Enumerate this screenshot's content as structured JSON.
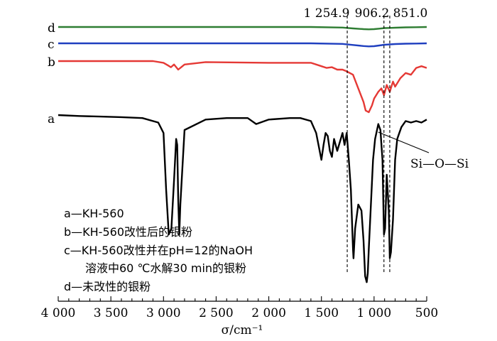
{
  "chart_data": {
    "type": "line",
    "xlabel": "σ/cm⁻¹",
    "xlim": [
      4000,
      500
    ],
    "x_ticks": [
      "4 000",
      "3 500",
      "3 000",
      "2 500",
      "2 000",
      "1 500",
      "1 000",
      "500"
    ],
    "x_tick_values": [
      4000,
      3500,
      3000,
      2500,
      2000,
      1500,
      1000,
      500
    ],
    "peak_markers": [
      {
        "label": "1 254.9",
        "x": 1254.9
      },
      {
        "label": "906.2",
        "x": 906.2
      },
      {
        "label": "851.0",
        "x": 851.0
      }
    ],
    "annotation": {
      "label": "Si—O—Si",
      "x": 960
    },
    "series": [
      {
        "name": "d",
        "color": "#2e7d32",
        "x": [
          4000,
          3500,
          3000,
          2500,
          2000,
          1600,
          1300,
          1200,
          1100,
          1050,
          1000,
          950,
          900,
          850,
          800,
          700,
          600,
          500
        ],
        "y": [
          0,
          0,
          0,
          0,
          0,
          0,
          0.3,
          0.8,
          1.2,
          1.3,
          1.2,
          0.9,
          0.6,
          0.5,
          0.4,
          0.2,
          0.1,
          0
        ]
      },
      {
        "name": "c",
        "color": "#1f3fbf",
        "x": [
          4000,
          3500,
          3000,
          2500,
          2000,
          1600,
          1300,
          1200,
          1100,
          1050,
          1000,
          950,
          900,
          850,
          800,
          700,
          600,
          500
        ],
        "y": [
          0,
          0,
          0,
          0,
          0,
          0,
          0.3,
          0.9,
          1.5,
          1.7,
          1.6,
          1.2,
          0.8,
          0.6,
          0.4,
          0.2,
          0.1,
          0
        ]
      },
      {
        "name": "b",
        "color": "#e53935",
        "x": [
          4000,
          3500,
          3100,
          3000,
          2960,
          2930,
          2900,
          2860,
          2800,
          2600,
          2000,
          1600,
          1500,
          1450,
          1400,
          1350,
          1300,
          1260,
          1200,
          1150,
          1100,
          1080,
          1050,
          1020,
          1000,
          960,
          930,
          906,
          880,
          851,
          820,
          800,
          750,
          700,
          650,
          600,
          550,
          500
        ],
        "y": [
          0,
          0,
          0,
          0.5,
          1.2,
          1.8,
          1.0,
          2.5,
          1.0,
          0.3,
          0.5,
          0.5,
          1.5,
          2.0,
          1.8,
          2.5,
          2.5,
          3.0,
          4.0,
          8.0,
          12.0,
          14.5,
          15.0,
          13.0,
          11.0,
          9.0,
          8.0,
          10.0,
          7.0,
          9.0,
          6.0,
          7.5,
          5.0,
          3.5,
          4.0,
          2.0,
          1.5,
          2.0
        ]
      },
      {
        "name": "a",
        "color": "#000000",
        "x": [
          4000,
          3800,
          3600,
          3400,
          3200,
          3050,
          3000,
          2975,
          2950,
          2925,
          2900,
          2880,
          2870,
          2860,
          2850,
          2840,
          2800,
          2600,
          2400,
          2200,
          2120,
          2000,
          1800,
          1700,
          1600,
          1550,
          1500,
          1480,
          1460,
          1440,
          1420,
          1400,
          1380,
          1350,
          1300,
          1280,
          1260,
          1240,
          1220,
          1200,
          1195,
          1180,
          1150,
          1120,
          1100,
          1085,
          1070,
          1060,
          1050,
          1030,
          1010,
          990,
          960,
          940,
          920,
          906,
          895,
          880,
          860,
          851,
          840,
          820,
          800,
          780,
          760,
          740,
          700,
          650,
          600,
          550,
          500
        ],
        "y": [
          0,
          0.3,
          0.5,
          0.7,
          1.0,
          2.5,
          6.0,
          25.0,
          40.0,
          38.0,
          22.0,
          8.0,
          10.0,
          28.0,
          40.0,
          30.0,
          5.0,
          1.5,
          1.0,
          1.0,
          3.0,
          1.5,
          1.0,
          1.0,
          2.0,
          6.0,
          15.0,
          10.0,
          6.0,
          7.0,
          12.0,
          14.0,
          8.0,
          12.0,
          6.0,
          10.0,
          6.0,
          15.0,
          25.0,
          45.0,
          48.0,
          38.0,
          30.0,
          32.0,
          42.0,
          54.0,
          56.0,
          53.0,
          45.0,
          30.0,
          15.0,
          8.0,
          3.0,
          5.0,
          15.0,
          40.0,
          38.0,
          20.0,
          32.0,
          48.0,
          46.0,
          35.0,
          15.0,
          8.0,
          6.0,
          4.0,
          2.0,
          2.5,
          2.0,
          2.5,
          1.5
        ]
      }
    ],
    "legend": [
      "a—KH-560",
      "b—KH-560改性后的银粉",
      "c—KH-560改性并在pH=12的NaOH",
      "溶液中60 ℃水解30 min的银粉",
      "d—未改性的银粉"
    ]
  }
}
